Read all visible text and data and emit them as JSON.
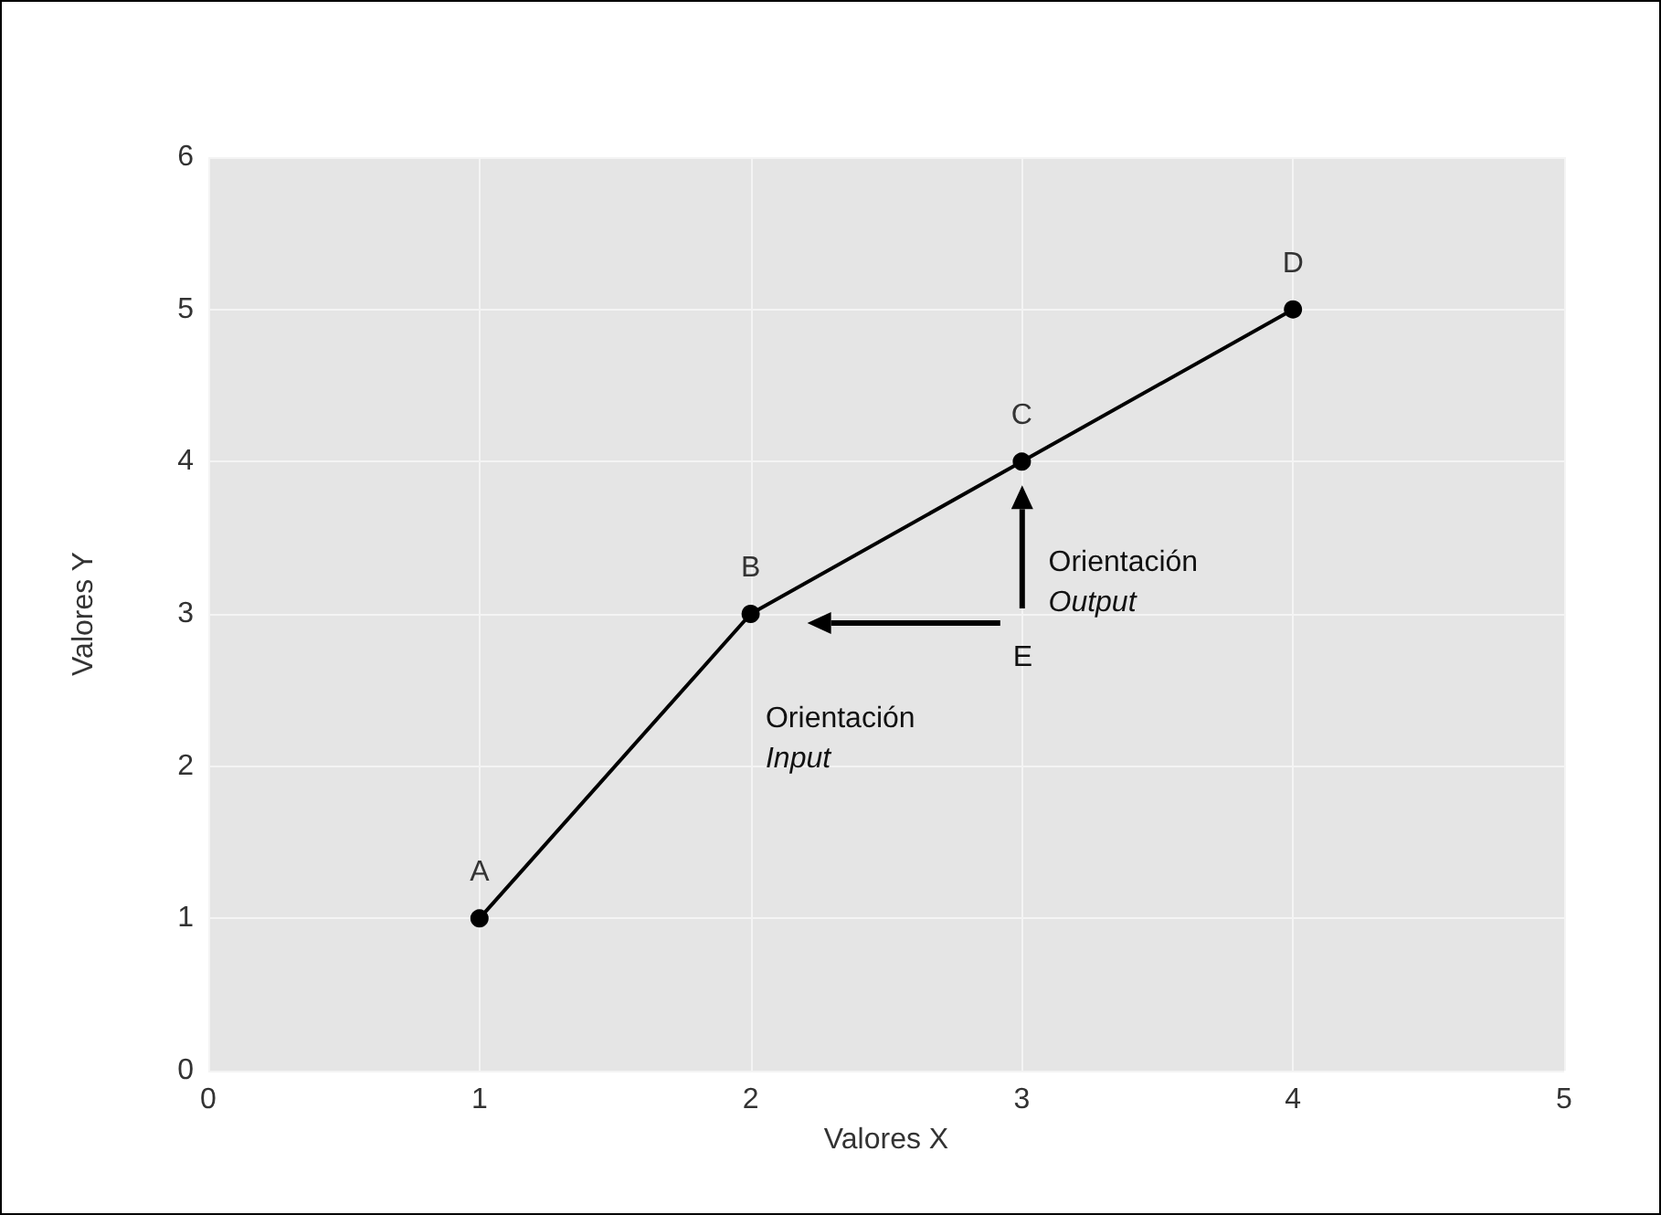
{
  "chart_data": {
    "type": "line",
    "xlabel": "Valores X",
    "ylabel": "Valores Y",
    "x": [
      1,
      2,
      3,
      4
    ],
    "series": [
      {
        "color": "#000000",
        "values": [
          1,
          3,
          4,
          5
        ],
        "value_labels": [
          "A",
          "B",
          "C",
          "D"
        ]
      }
    ],
    "xlim": [
      0,
      5
    ],
    "xticks": [
      0,
      1,
      2,
      3,
      4,
      5
    ],
    "ylim": [
      0,
      6
    ],
    "yticks": [
      0,
      1,
      2,
      3,
      4,
      5,
      6
    ],
    "grid": true,
    "marker": "circle",
    "line_style": "solid",
    "annotations": [
      "E",
      "Orientación\nInput",
      "Orientación\nOutput"
    ]
  }
}
